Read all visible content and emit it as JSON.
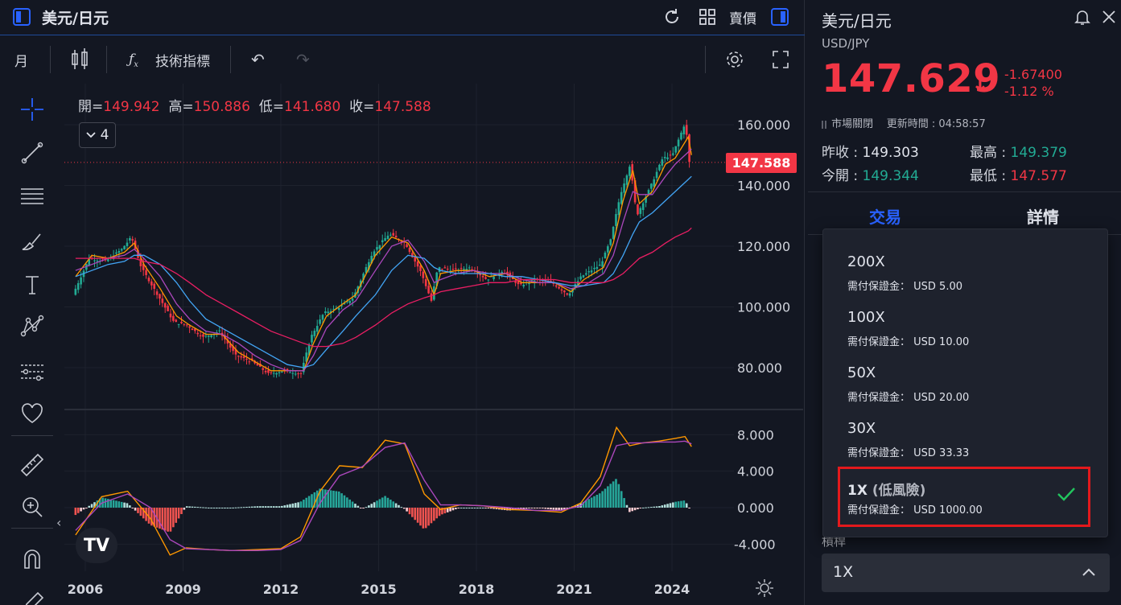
{
  "header": {
    "title": "美元/日元",
    "sell_label": "賣價"
  },
  "toolbar": {
    "interval": "月",
    "indicators_label": "技術指標"
  },
  "ohlc": {
    "open_label": "開=",
    "open": "149.942",
    "high_label": "高=",
    "high": "150.886",
    "low_label": "低=",
    "low": "141.680",
    "close_label": "收=",
    "close": "147.588"
  },
  "layers_count": "4",
  "current_price_tag": "147.588",
  "logo_text": "TV",
  "chart_data": [
    {
      "type": "candlestick",
      "title": "",
      "x_ticks": [
        "2006",
        "2009",
        "2012",
        "2015",
        "2018",
        "2021",
        "2024"
      ],
      "y_ticks": [
        "160.000",
        "140.000",
        "120.000",
        "100.000",
        "80.000"
      ],
      "ylim": [
        72,
        165
      ],
      "last_close": 147.588,
      "series_path_years": [
        2005.7,
        2006.2,
        2006.7,
        2007.2,
        2007.5,
        2007.8,
        2008.3,
        2008.8,
        2009.2,
        2009.7,
        2010.2,
        2010.7,
        2011.2,
        2011.7,
        2012.2,
        2012.7,
        2013.0,
        2013.4,
        2013.9,
        2014.3,
        2014.9,
        2015.4,
        2015.9,
        2016.4,
        2016.7,
        2016.9,
        2017.4,
        2017.9,
        2018.4,
        2018.9,
        2019.4,
        2019.9,
        2020.4,
        2020.9,
        2021.3,
        2021.9,
        2022.2,
        2022.5,
        2022.8,
        2023.0,
        2023.4,
        2023.8,
        2024.1,
        2024.5,
        2024.6
      ],
      "series_path_values": [
        104,
        116,
        115,
        119,
        123,
        113,
        104,
        95,
        94,
        90,
        92,
        84,
        82,
        78,
        79,
        78,
        90,
        98,
        100,
        103,
        118,
        124,
        121,
        111,
        102,
        113,
        112,
        113,
        109,
        112,
        107,
        109,
        108,
        104,
        110,
        114,
        122,
        137,
        147,
        130,
        139,
        149,
        150,
        161,
        147.6
      ],
      "moving_averages": [
        {
          "color": "#ff9800",
          "values": [
            110,
            117,
            116,
            118,
            121,
            114,
            106,
            97,
            94,
            91,
            91,
            85,
            82,
            79,
            79,
            79,
            88,
            97,
            101,
            104,
            117,
            123,
            121,
            112,
            104,
            111,
            112,
            112,
            110,
            111,
            108,
            108,
            108,
            105,
            109,
            113,
            121,
            135,
            145,
            134,
            138,
            147,
            149,
            156,
            150
          ]
        },
        {
          "color": "#ab47bc",
          "values": [
            112,
            114,
            116,
            117,
            119,
            116,
            110,
            101,
            96,
            92,
            91,
            88,
            84,
            81,
            79,
            79,
            84,
            93,
            99,
            102,
            112,
            120,
            122,
            115,
            108,
            109,
            111,
            112,
            111,
            111,
            109,
            108,
            108,
            106,
            107,
            111,
            117,
            128,
            138,
            137,
            137,
            143,
            147,
            151,
            152
          ]
        },
        {
          "color": "#42a5f5",
          "values": [
            110,
            112,
            114,
            115,
            117,
            117,
            114,
            108,
            102,
            96,
            93,
            90,
            87,
            84,
            81,
            80,
            81,
            86,
            92,
            97,
            104,
            112,
            117,
            116,
            113,
            112,
            111,
            111,
            111,
            110,
            110,
            109,
            108,
            107,
            107,
            108,
            111,
            117,
            124,
            128,
            131,
            135,
            138,
            142,
            143
          ]
        },
        {
          "color": "#e91e63",
          "values": [
            116,
            116,
            116,
            116,
            116,
            115,
            114,
            111,
            108,
            104,
            101,
            98,
            95,
            92,
            90,
            88,
            87,
            87,
            88,
            90,
            94,
            98,
            101,
            103,
            104,
            105,
            106,
            107,
            108,
            108,
            109,
            109,
            109,
            108,
            108,
            108,
            109,
            111,
            114,
            116,
            118,
            121,
            123,
            125,
            126
          ]
        }
      ]
    },
    {
      "type": "bar",
      "title": "",
      "y_ticks": [
        "8.000",
        "4.000",
        "0.000",
        "-4.000"
      ],
      "ylim": [
        -6,
        10
      ],
      "macd_years": [
        2005.7,
        2006.5,
        2007.3,
        2008.0,
        2008.6,
        2009.1,
        2009.8,
        2010.5,
        2011.3,
        2012.0,
        2012.6,
        2013.2,
        2013.8,
        2014.5,
        2015.2,
        2015.8,
        2016.4,
        2016.9,
        2017.5,
        2018.2,
        2019.0,
        2019.8,
        2020.6,
        2021.2,
        2021.8,
        2022.3,
        2022.7,
        2023.1,
        2023.6,
        2024.1,
        2024.4,
        2024.6
      ],
      "macd_values": [
        -3.0,
        1.2,
        1.8,
        -1.2,
        -5.2,
        -4.4,
        -4.6,
        -4.7,
        -4.6,
        -4.5,
        -3.2,
        1.8,
        4.6,
        4.4,
        7.4,
        7.0,
        1.5,
        -0.2,
        0.3,
        0.2,
        -0.2,
        -0.3,
        -0.5,
        0.5,
        3.4,
        8.8,
        6.8,
        7.1,
        7.3,
        7.6,
        7.8,
        6.7
      ],
      "signal_values": [
        -2.5,
        0.5,
        1.5,
        0.0,
        -3.5,
        -4.5,
        -4.6,
        -4.7,
        -4.7,
        -4.6,
        -3.6,
        0.5,
        3.5,
        4.5,
        6.6,
        7.1,
        3.0,
        0.3,
        0.3,
        0.2,
        0.0,
        -0.3,
        -0.3,
        0.2,
        2.4,
        6.8,
        7.1,
        7.1,
        7.2,
        7.2,
        7.3,
        7.0
      ]
    }
  ],
  "right": {
    "title": "美元/日元",
    "symbol": "USD/JPY",
    "price": "147.629",
    "change_abs": "-1.67400",
    "change_pct": "-1.12 %",
    "market_status": "市場關閉",
    "update_label": "更新時間 : 04:58:57",
    "prev_close_label": "昨收 : ",
    "prev_close": "149.303",
    "open_label": "今開 : ",
    "open": "149.344",
    "high_label": "最高 : ",
    "high": "149.379",
    "low_label": "最低 : ",
    "low": "147.577",
    "tab_trade": "交易",
    "tab_detail": "詳情",
    "leverage_label": "槓桿",
    "leverage_value": "1X"
  },
  "dropdown": {
    "options": [
      {
        "name": "200X",
        "margin": "需付保證金： USD 5.00"
      },
      {
        "name": "100X",
        "margin": "需付保證金： USD 10.00"
      },
      {
        "name": "50X",
        "margin": "需付保證金： USD 20.00"
      },
      {
        "name": "30X",
        "margin": "需付保證金： USD 33.33"
      }
    ],
    "selected": {
      "name": "1X",
      "sub": "(低風險)",
      "margin": "需付保證金： USD 1000.00"
    }
  },
  "colors": {
    "up": "#22ab94",
    "down": "#f23645",
    "accent": "#2962ff",
    "highlight_border": "#e3191c",
    "check": "#22c55e"
  }
}
